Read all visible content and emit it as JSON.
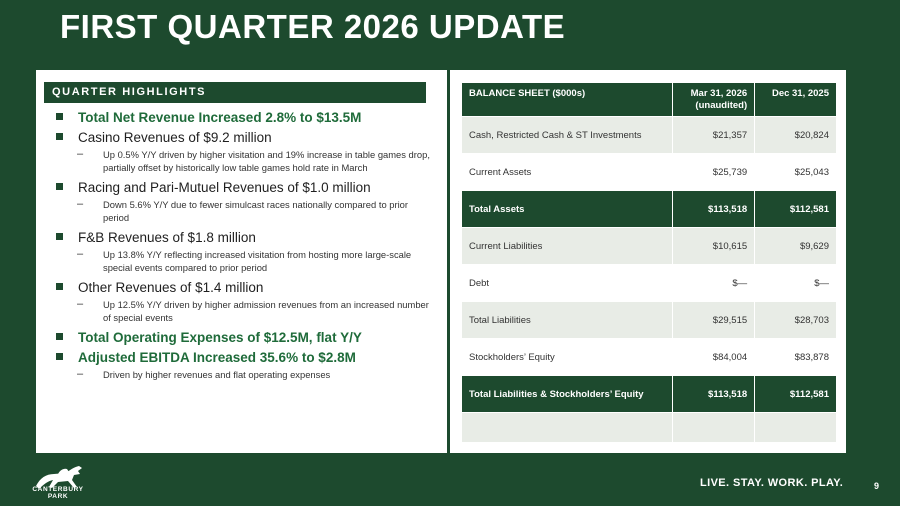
{
  "title": "FIRST QUARTER 2026 UPDATE",
  "highlights": {
    "heading": "QUARTER HIGHLIGHTS",
    "items": [
      {
        "text": "Total Net Revenue Increased 2.8% to $13.5M",
        "subs": []
      },
      {
        "text": "Casino Revenues of $9.2 million",
        "subs": [
          "Up 0.5% Y/Y driven by higher visitation and 19% increase in table games drop, partially offset by historically low table games hold rate in March"
        ]
      },
      {
        "text": "Racing and Pari-Mutuel Revenues of $1.0 million",
        "subs": [
          "Down 5.6% Y/Y due to fewer simulcast races nationally compared to prior period"
        ]
      },
      {
        "text": "F&B Revenues of $1.8 million",
        "subs": [
          "Up 13.8% Y/Y reflecting increased visitation from hosting more large-scale special events compared to prior period"
        ]
      },
      {
        "text": "Other Revenues of $1.4 million",
        "subs": [
          "Up 12.5% Y/Y driven by higher admission revenues from an increased number of special events"
        ]
      },
      {
        "text": "Total Operating Expenses of $12.5M, flat Y/Y",
        "subs": []
      },
      {
        "text": "Adjusted EBITDA Increased 35.6% to $2.8M",
        "subs": [
          "Driven by higher revenues and flat operating expenses"
        ]
      }
    ]
  },
  "balance_sheet": {
    "headers": [
      "BALANCE SHEET ($000s)",
      "Mar 31, 2026 (unaudited)",
      "Dec 31, 2025"
    ],
    "rows": [
      [
        "Cash, Restricted Cash & ST Investments",
        "$21,357",
        "$20,824"
      ],
      [
        "Current Assets",
        "$25,739",
        "$25,043"
      ],
      [
        "Total Assets",
        "$113,518",
        "$112,581"
      ],
      [
        "Current Liabilities",
        "$10,615",
        "$9,629"
      ],
      [
        "Debt",
        "$—",
        "$—"
      ],
      [
        "Total Liabilities",
        "$29,515",
        "$28,703"
      ],
      [
        "Stockholders’ Equity",
        "$84,004",
        "$83,878"
      ],
      [
        "Total Liabilities & Stockholders’ Equity",
        "$113,518",
        "$112,581"
      ],
      [
        "",
        "",
        ""
      ]
    ]
  },
  "footer": {
    "logo_text": "CANTERBURY PARK",
    "tagline": "LIVE. STAY. WORK. PLAY.",
    "page_number": "9"
  },
  "colors": {
    "brand_green": "#1d4a2e",
    "highlight_green": "#1f6b3a",
    "row_light": "#e8ece6"
  }
}
